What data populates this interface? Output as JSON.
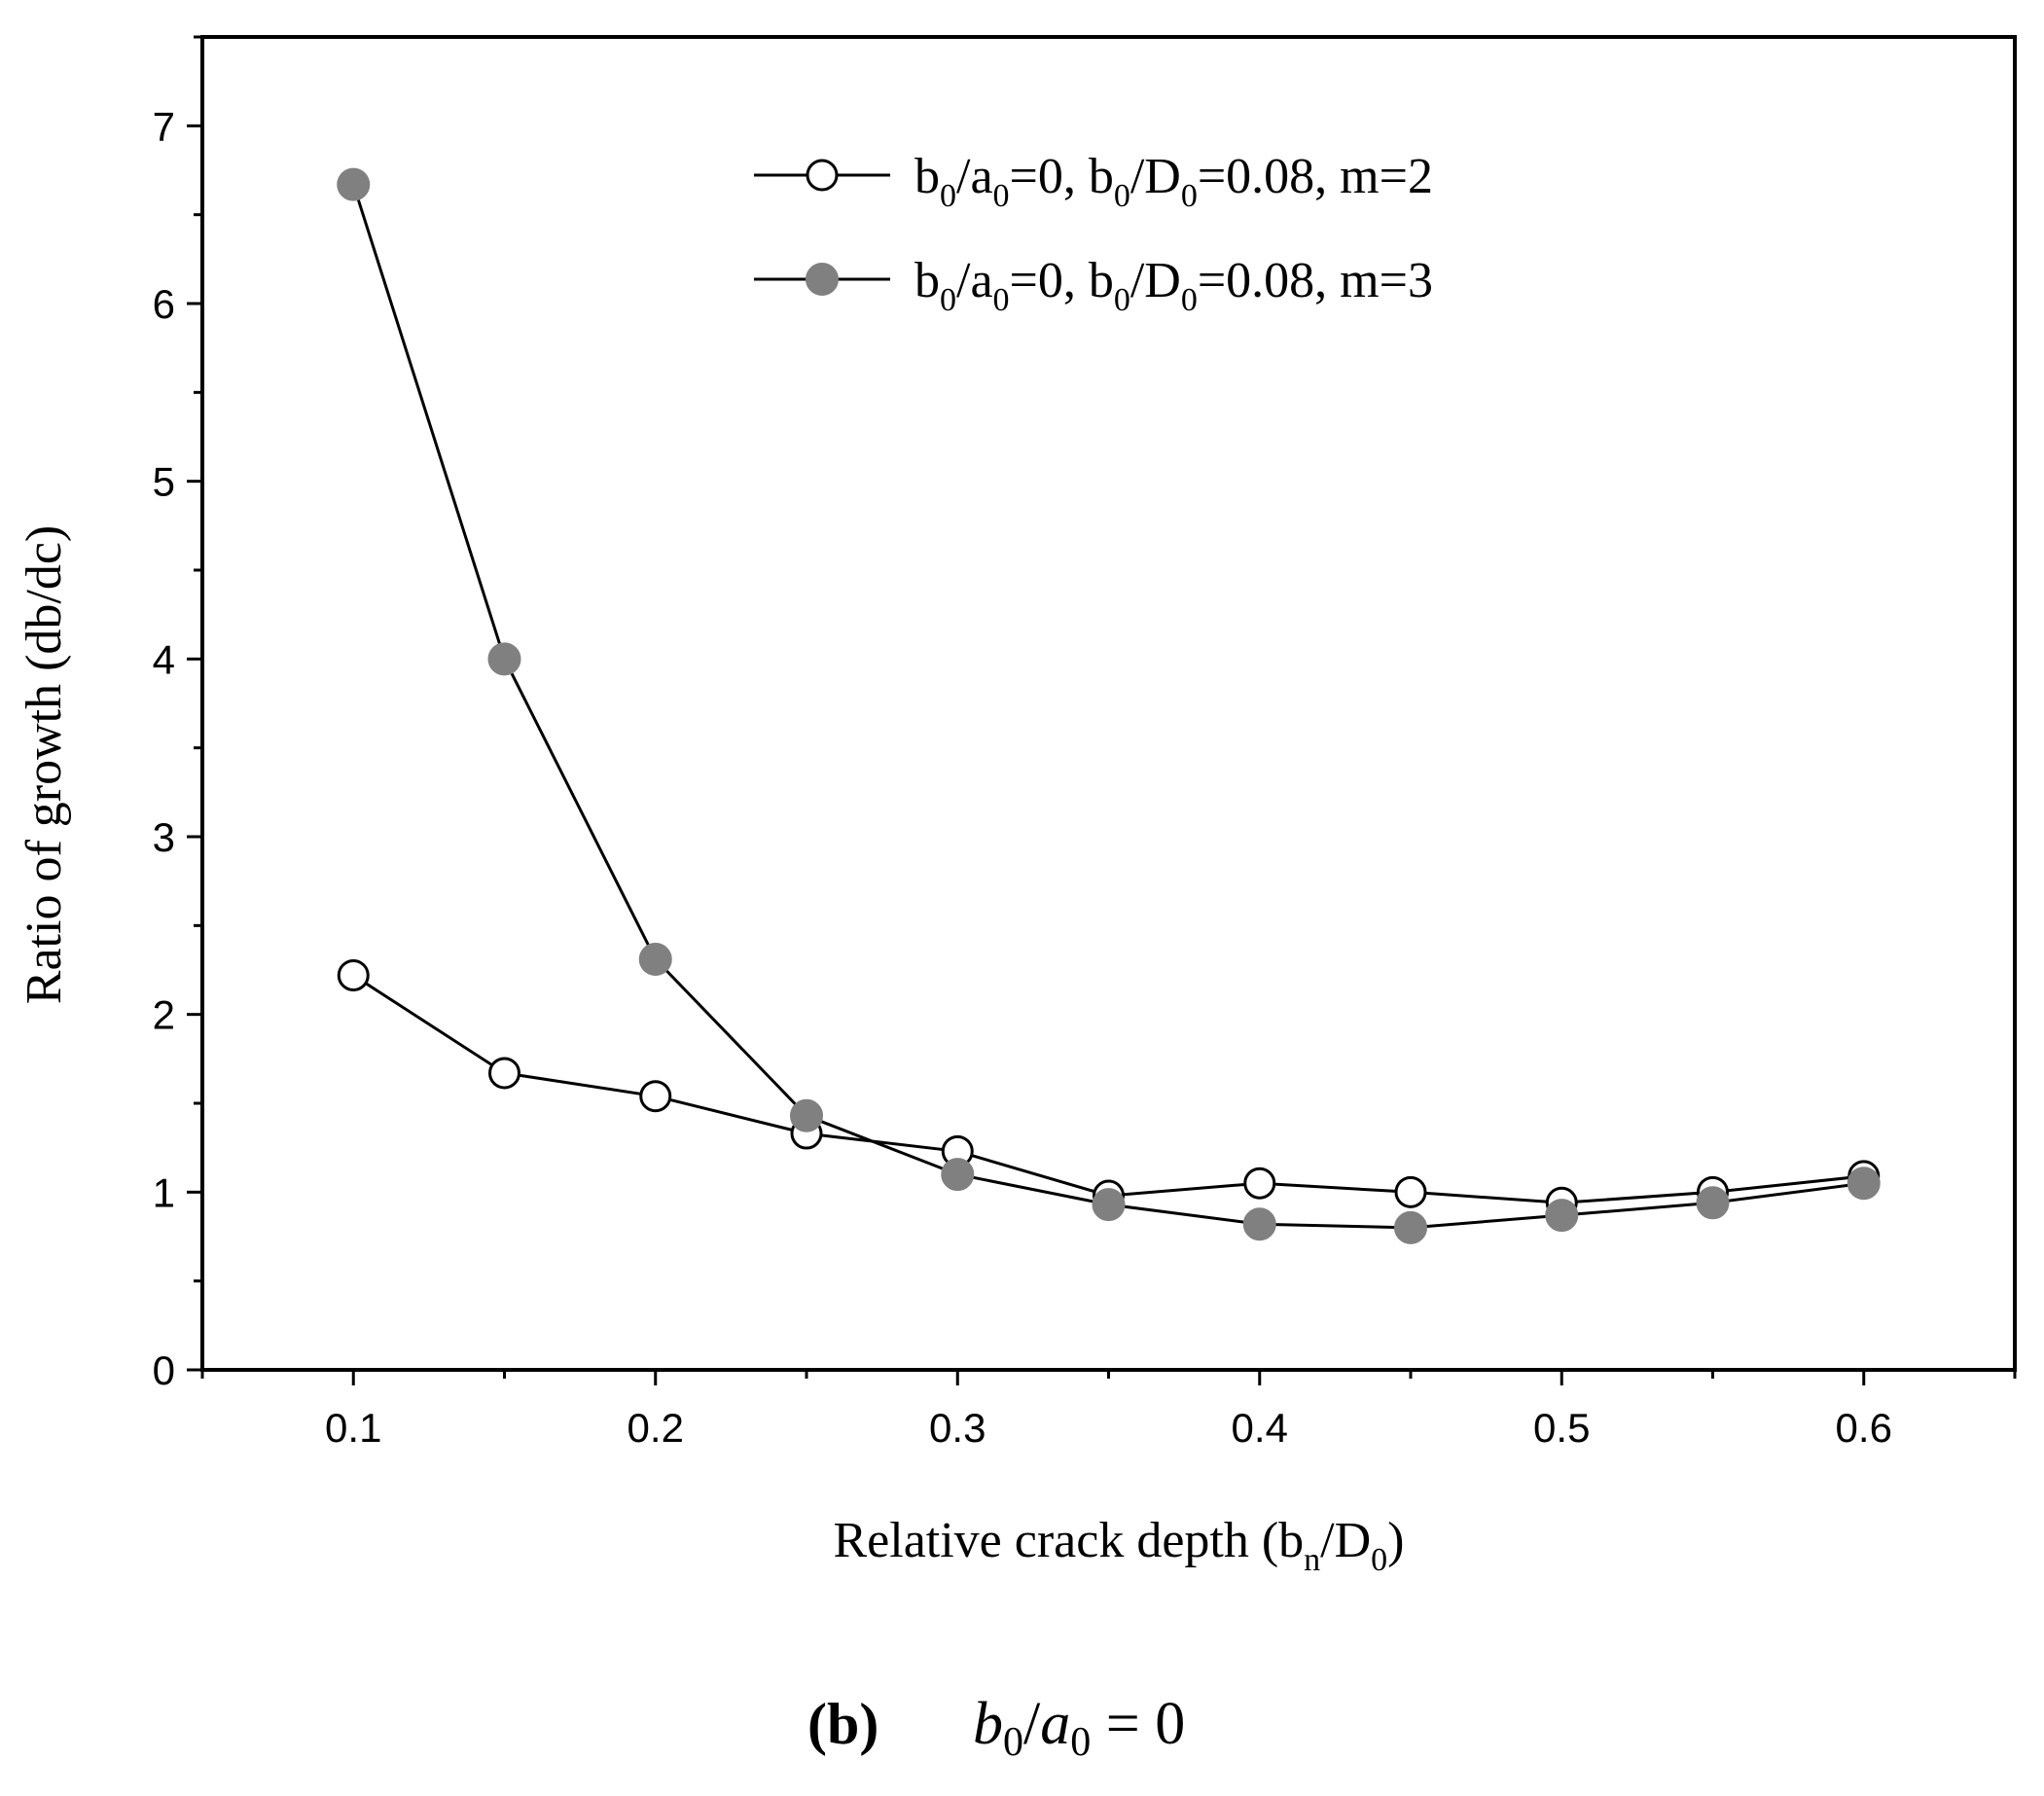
{
  "chart_data": {
    "type": "line",
    "title": "",
    "xlabel": {
      "main": "Relative crack depth (b",
      "sub1": "n",
      "mid": "/D",
      "sub2": "0",
      "end": ")"
    },
    "ylabel": "Ratio of growth (db/dc)",
    "xlim": [
      0.05,
      0.65
    ],
    "ylim": [
      0,
      7.5
    ],
    "x_ticks": [
      0.1,
      0.2,
      0.3,
      0.4,
      0.5,
      0.6
    ],
    "x_tick_labels": [
      "0.1",
      "0.2",
      "0.3",
      "0.4",
      "0.5",
      "0.6"
    ],
    "y_ticks": [
      0,
      1,
      2,
      3,
      4,
      5,
      6,
      7
    ],
    "y_tick_labels": [
      "0",
      "1",
      "2",
      "3",
      "4",
      "5",
      "6",
      "7"
    ],
    "legend_position": "top-right",
    "x": [
      0.1,
      0.15,
      0.2,
      0.25,
      0.3,
      0.35,
      0.4,
      0.45,
      0.5,
      0.55,
      0.6
    ],
    "series": [
      {
        "legend": {
          "t1": "b",
          "s1": "0",
          "t2": "/a",
          "s2": "0",
          "t3": "=0, b",
          "s3": "0",
          "t4": "/D",
          "s4": "0",
          "t5": "=0.08, m=2"
        },
        "marker": "open-circle",
        "color": "#000000",
        "values": [
          2.22,
          1.67,
          1.54,
          1.33,
          1.23,
          0.98,
          1.05,
          1.0,
          0.94,
          1.0,
          1.09
        ]
      },
      {
        "legend": {
          "t1": "b",
          "s1": "0",
          "t2": "/a",
          "s2": "0",
          "t3": "=0, b",
          "s3": "0",
          "t4": "/D",
          "s4": "0",
          "t5": "=0.08, m=3"
        },
        "marker": "filled-circle",
        "color": "#808080",
        "values": [
          6.67,
          4.0,
          2.31,
          1.43,
          1.1,
          0.93,
          0.82,
          0.8,
          0.87,
          0.94,
          1.05
        ]
      }
    ]
  },
  "caption": {
    "label": "(b)",
    "formula": {
      "v1": "b",
      "s1": "0",
      "slash": "/",
      "v2": "a",
      "s2": "0",
      "rest": " = 0"
    }
  }
}
